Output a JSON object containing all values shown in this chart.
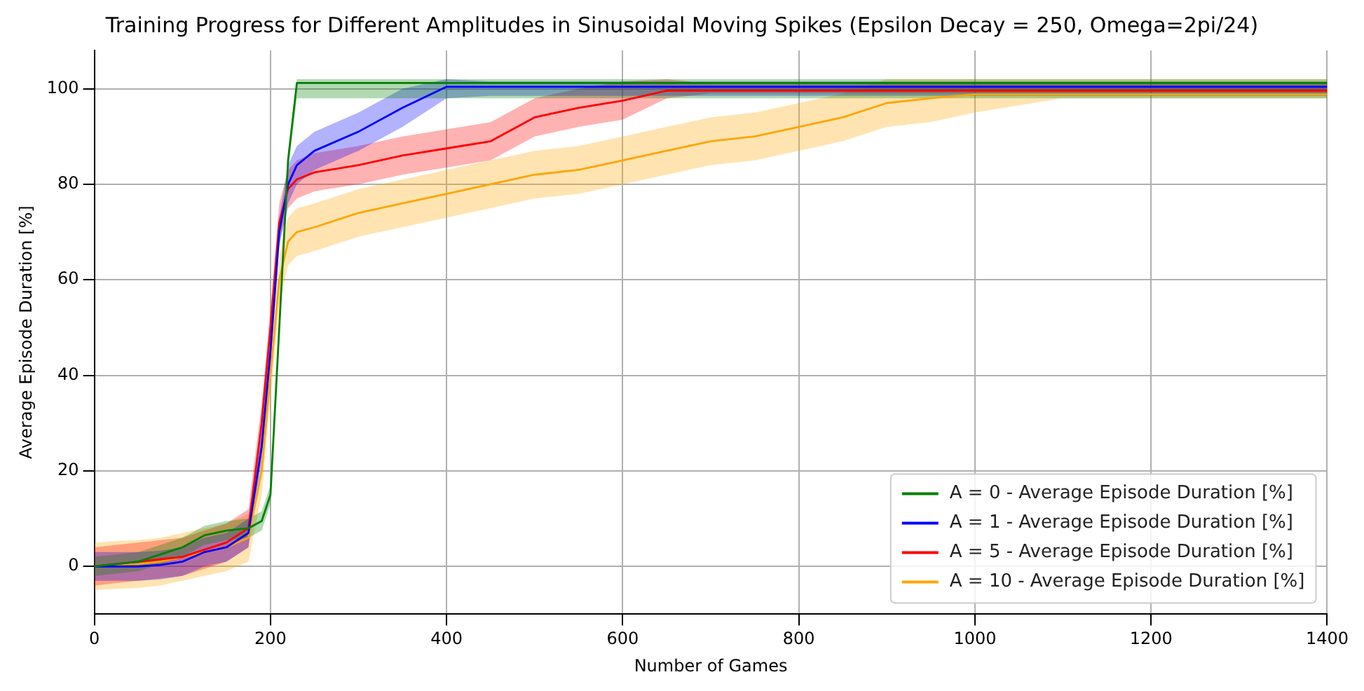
{
  "chart_data": {
    "type": "line",
    "title": "Training Progress for Different Amplitudes in Sinusoidal Moving Spikes (Epsilon Decay = 250, Omega=2pi/24)",
    "xlabel": "Number of Games",
    "ylabel": "Average Episode Duration [%]",
    "x": [
      0,
      25,
      50,
      75,
      100,
      125,
      150,
      175,
      190,
      200,
      210,
      220,
      230,
      250,
      300,
      350,
      400,
      450,
      500,
      550,
      600,
      650,
      700,
      750,
      800,
      850,
      900,
      950,
      1000,
      1100,
      1200,
      1300,
      1400
    ],
    "xlim": [
      0,
      1400
    ],
    "xticks": [
      0,
      200,
      400,
      600,
      800,
      1000,
      1200,
      1400
    ],
    "ylim": [
      -10,
      108
    ],
    "yticks": [
      0,
      20,
      40,
      60,
      80,
      100
    ],
    "grid": true,
    "legend": "bottom right",
    "marker": "none",
    "line_style": "solid",
    "series": [
      {
        "name": "A = 0 - Average Episode Duration [%]",
        "color": "#008000",
        "values": [
          0,
          0.5,
          1,
          2.5,
          4,
          6.5,
          7.5,
          8,
          9.5,
          15,
          50,
          85,
          101.2,
          101.2,
          101.2,
          101.2,
          101.2,
          101.2,
          101.2,
          101.2,
          101.2,
          101.2,
          101.2,
          101.2,
          101.2,
          101.2,
          101.2,
          101.2,
          101.2,
          101.2,
          101.2,
          101.2,
          101.2
        ],
        "lower": [
          -2,
          -1.5,
          -1,
          0.5,
          2,
          4.5,
          5.5,
          6,
          7.5,
          13,
          48,
          83,
          98,
          98,
          98,
          98,
          98,
          98,
          98,
          98,
          98,
          98,
          98,
          98,
          98,
          98,
          98,
          98,
          98,
          98,
          98,
          98,
          98
        ],
        "upper": [
          2,
          2.5,
          3,
          4.5,
          6,
          8.5,
          9.5,
          10,
          11.5,
          17,
          52,
          87,
          102,
          102,
          102,
          102,
          102,
          102,
          102,
          102,
          102,
          102,
          102,
          102,
          102,
          102,
          102,
          102,
          102,
          102,
          102,
          102,
          102
        ]
      },
      {
        "name": "A = 1 - Average Episode Duration [%]",
        "color": "#0000ff",
        "values": [
          0,
          0,
          0,
          0.3,
          1,
          3,
          4,
          7,
          25,
          45,
          70,
          80,
          84,
          87,
          91,
          96,
          100.4,
          100.4,
          100.4,
          100.4,
          100.4,
          100.4,
          100.4,
          100.4,
          100.4,
          100.4,
          100.4,
          100.4,
          100.4,
          100.4,
          100.4,
          100.4,
          100.4
        ],
        "lower": [
          -3,
          -3,
          -3,
          -2.7,
          -2,
          0,
          1,
          4,
          22,
          42,
          67,
          76,
          80,
          83,
          87,
          92,
          98,
          98.5,
          98.5,
          98.5,
          98.5,
          98.5,
          98.5,
          98.5,
          98.5,
          98.5,
          98.5,
          98.5,
          98.5,
          98.5,
          98.5,
          98.5,
          98.5
        ],
        "upper": [
          3,
          3,
          3,
          3.3,
          4,
          6,
          7,
          10,
          28,
          48,
          73,
          84,
          88,
          91,
          95,
          100,
          102,
          101.5,
          101.5,
          101.5,
          101.5,
          101.5,
          101.5,
          101.5,
          101.5,
          101.5,
          101.5,
          101.5,
          101.5,
          101.5,
          101.5,
          101.5,
          101.5
        ]
      },
      {
        "name": "A = 5 - Average Episode Duration [%]",
        "color": "#ff0000",
        "values": [
          0,
          0.5,
          1,
          1.5,
          2,
          3.5,
          5,
          8,
          30,
          50,
          72,
          79,
          81,
          82.5,
          84,
          86,
          87.5,
          89,
          94,
          96,
          97.5,
          99.6,
          99.6,
          99.6,
          99.6,
          99.6,
          99.6,
          99.6,
          99.6,
          99.6,
          99.6,
          99.6,
          99.6
        ],
        "lower": [
          -4,
          -3.5,
          -3,
          -2.5,
          -2,
          -0.5,
          1,
          4,
          26,
          46,
          68,
          75,
          77,
          78.5,
          80,
          82,
          83.5,
          85,
          90,
          92,
          93.5,
          98,
          99,
          99,
          99,
          99,
          99,
          99,
          99,
          99,
          99,
          99,
          99
        ],
        "upper": [
          4,
          4.5,
          5,
          5.5,
          6,
          7.5,
          9,
          12,
          34,
          54,
          76,
          83,
          85,
          86.5,
          88,
          90,
          91.5,
          93,
          98,
          100,
          101.5,
          102,
          101,
          101,
          101,
          101,
          101,
          101,
          101,
          101,
          101,
          101,
          101
        ]
      },
      {
        "name": "A = 10 - Average Episode Duration [%]",
        "color": "#ffa500",
        "values": [
          0,
          0.3,
          0.5,
          1,
          2,
          3,
          4,
          6,
          20,
          40,
          60,
          68,
          70,
          71,
          74,
          76,
          78,
          80,
          82,
          83,
          85,
          87,
          89,
          90,
          92,
          94,
          97,
          98,
          98.8,
          98.8,
          98.8,
          98.8,
          98.8
        ],
        "lower": [
          -5,
          -4.7,
          -4.5,
          -4,
          -3,
          -2,
          -1,
          1,
          15,
          35,
          55,
          63,
          65,
          66,
          69,
          71,
          73,
          75,
          77,
          78,
          80,
          82,
          84,
          85,
          87,
          89,
          92,
          93,
          95,
          98,
          98,
          98,
          98
        ],
        "upper": [
          5,
          5.3,
          5.5,
          6,
          7,
          8,
          9,
          11,
          25,
          45,
          65,
          73,
          75,
          76,
          79,
          81,
          83,
          85,
          87,
          88,
          90,
          92,
          94,
          95,
          97,
          99,
          102,
          102,
          102,
          102,
          102,
          102,
          102
        ]
      }
    ]
  }
}
